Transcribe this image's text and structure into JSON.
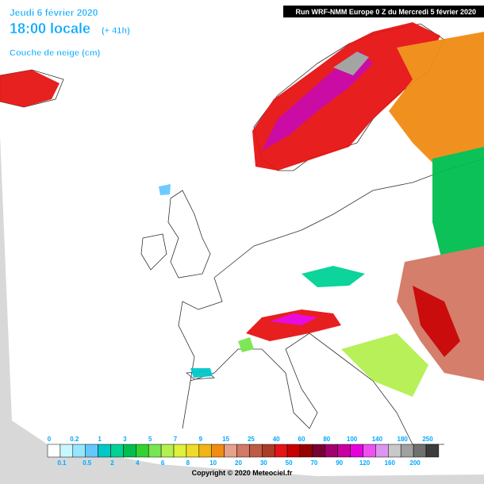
{
  "header": {
    "date": "Jeudi 6 février 2020",
    "time": "18:00 locale",
    "lead": "(+ 41h)",
    "product": "Couche de neige (cm)",
    "run": "Run WRF-NMM Europe 0 Z du Mercredi 5 février 2020"
  },
  "legend": {
    "thresholds": [
      0,
      0.1,
      0.2,
      0.5,
      1,
      2,
      3,
      4,
      5,
      6,
      7,
      8,
      9,
      10,
      15,
      20,
      25,
      30,
      40,
      50,
      60,
      70,
      80,
      90,
      100,
      120,
      140,
      160,
      180,
      200,
      250
    ],
    "colors": [
      "#ffffff",
      "#c8f8ff",
      "#96e6ff",
      "#64c8ff",
      "#00c8c8",
      "#00d296",
      "#00be50",
      "#32d232",
      "#78e650",
      "#b4f050",
      "#dcf03c",
      "#f0dc28",
      "#f0b414",
      "#f08c14",
      "#e6a08c",
      "#d27864",
      "#be5a46",
      "#aa3c28",
      "#e61414",
      "#c80000",
      "#960000",
      "#780032",
      "#a0006e",
      "#c800a0",
      "#e600dc",
      "#f050f0",
      "#dc96f0",
      "#c8c8c8",
      "#a0a0a0",
      "#707070",
      "#3c3c3c"
    ]
  },
  "footer": "Copyright © 2020 Meteociel.fr"
}
